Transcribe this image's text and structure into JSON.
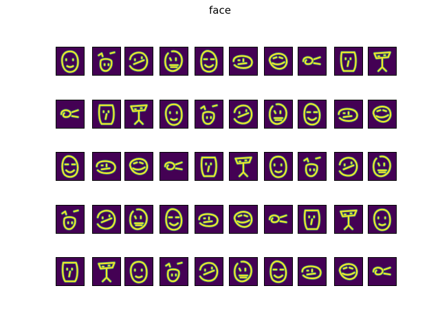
{
  "figure": {
    "title": "face",
    "rows": 5,
    "cols": 10,
    "colormap": "viridis",
    "colors": {
      "background": "#440154",
      "stroke": "#fde725",
      "edge": "#3fbc73"
    }
  }
}
